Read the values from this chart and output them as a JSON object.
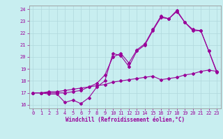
{
  "title": "",
  "xlabel": "Windchill (Refroidissement éolien,°C)",
  "ylabel": "",
  "bg_color": "#c8eef0",
  "line_color": "#990099",
  "grid_color": "#b0d8dc",
  "xlim": [
    -0.5,
    23.5
  ],
  "ylim": [
    15.7,
    24.3
  ],
  "yticks": [
    16,
    17,
    18,
    19,
    20,
    21,
    22,
    23,
    24
  ],
  "xticks": [
    0,
    1,
    2,
    3,
    4,
    5,
    6,
    7,
    8,
    9,
    10,
    11,
    12,
    13,
    14,
    15,
    16,
    17,
    18,
    19,
    20,
    21,
    22,
    23
  ],
  "line1_x": [
    0,
    1,
    2,
    3,
    4,
    5,
    6,
    7,
    8,
    9,
    10,
    11,
    12,
    13,
    14,
    15,
    16,
    17,
    18,
    19,
    20,
    21,
    22,
    23
  ],
  "line1_y": [
    17.0,
    17.0,
    16.9,
    16.9,
    16.2,
    16.4,
    16.1,
    16.6,
    17.5,
    18.0,
    20.3,
    20.1,
    19.2,
    20.5,
    21.0,
    22.2,
    23.3,
    23.2,
    23.8,
    22.9,
    22.2,
    22.2,
    20.5,
    18.7
  ],
  "line2_x": [
    0,
    1,
    2,
    3,
    4,
    5,
    6,
    7,
    8,
    9,
    10,
    11,
    12,
    13,
    14,
    15,
    16,
    17,
    18,
    19,
    20,
    21,
    22,
    23
  ],
  "line2_y": [
    17.0,
    17.0,
    17.1,
    17.1,
    17.2,
    17.3,
    17.4,
    17.5,
    17.6,
    17.7,
    17.9,
    18.0,
    18.1,
    18.2,
    18.3,
    18.4,
    18.1,
    18.2,
    18.3,
    18.5,
    18.6,
    18.8,
    18.9,
    18.8
  ],
  "line3_x": [
    0,
    1,
    2,
    3,
    4,
    5,
    6,
    7,
    8,
    9,
    10,
    11,
    12,
    13,
    14,
    15,
    16,
    17,
    18,
    19,
    20,
    21,
    22,
    23
  ],
  "line3_y": [
    17.0,
    17.0,
    17.0,
    17.0,
    17.0,
    17.1,
    17.2,
    17.5,
    17.8,
    18.5,
    20.0,
    20.3,
    19.5,
    20.6,
    21.1,
    22.3,
    23.4,
    23.2,
    23.9,
    22.9,
    22.3,
    22.2,
    20.5,
    18.8
  ],
  "tick_fontsize": 5.0,
  "xlabel_fontsize": 5.5
}
